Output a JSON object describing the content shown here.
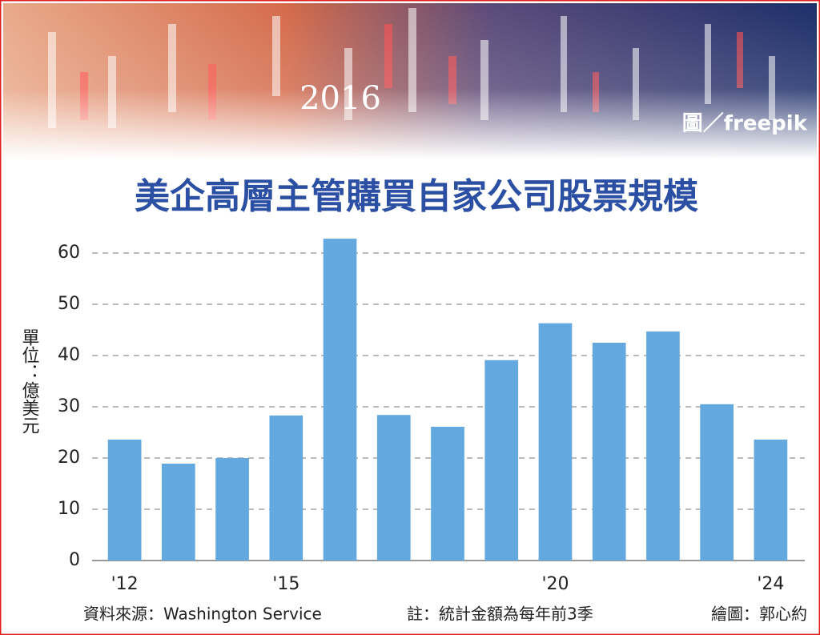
{
  "chart_data": {
    "type": "bar",
    "title": "美企高層主管購買自家公司股票規模",
    "header_image_text": "2016",
    "image_credit": "圖／freepik",
    "y_label": "單位：億美元",
    "source": "資料來源：Washington Service",
    "note": "註：統計金額為每年前3季",
    "credit": "繪圖：郭心約",
    "categories": [
      "'12",
      null,
      null,
      "'15",
      null,
      null,
      null,
      null,
      "'20",
      null,
      null,
      null,
      "'24"
    ],
    "values": [
      23.6,
      18.9,
      20,
      28.3,
      62.8,
      28.4,
      26.1,
      39.1,
      46.3,
      42.5,
      44.7,
      30.5,
      23.6
    ],
    "color": "#64a8e0",
    "ylim": [
      0,
      64
    ],
    "yticks": [
      0,
      10,
      20,
      30,
      40,
      50,
      60
    ],
    "grid": true
  }
}
